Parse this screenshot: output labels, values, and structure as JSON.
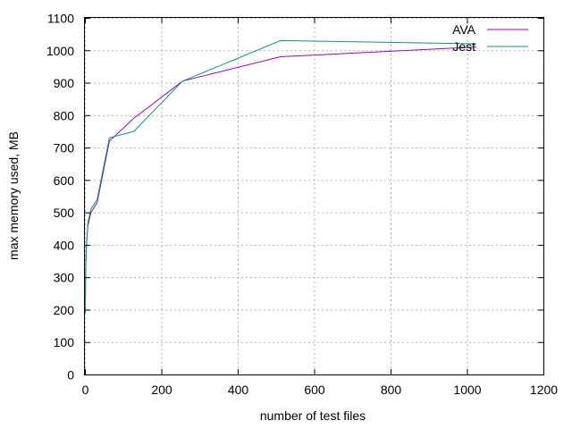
{
  "chart_data": {
    "type": "line",
    "title": "",
    "xlabel": "number of test files",
    "ylabel": "max memory used, MB",
    "xlim": [
      0,
      1200
    ],
    "ylim": [
      0,
      1100
    ],
    "xticks": [
      0,
      200,
      400,
      600,
      800,
      1000,
      1200
    ],
    "yticks": [
      0,
      100,
      200,
      300,
      400,
      500,
      600,
      700,
      800,
      900,
      1000,
      1100
    ],
    "grid": true,
    "legend_position": "top-right",
    "series": [
      {
        "name": "AVA",
        "color": "#9400d3",
        "x": [
          1,
          2,
          4,
          8,
          16,
          32,
          64,
          128,
          256,
          512,
          1024
        ],
        "y": [
          190,
          330,
          400,
          460,
          500,
          530,
          720,
          790,
          905,
          980,
          1010
        ]
      },
      {
        "name": "Jest",
        "color": "#009e73",
        "x": [
          1,
          2,
          4,
          8,
          16,
          32,
          64,
          128,
          256,
          512,
          1024
        ],
        "y": [
          190,
          320,
          390,
          470,
          510,
          540,
          730,
          750,
          905,
          1030,
          1020
        ]
      }
    ]
  }
}
